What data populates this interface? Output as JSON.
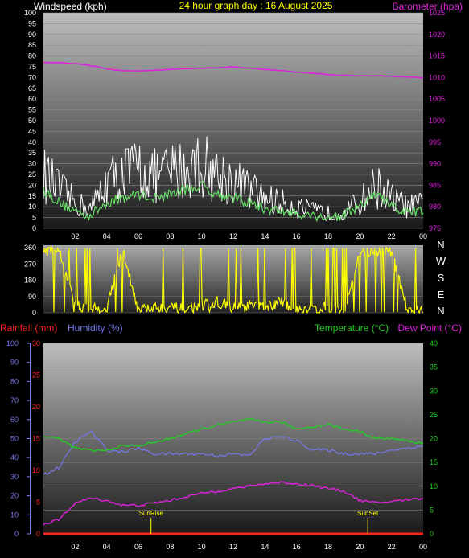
{
  "header": {
    "windspeed_label": "Windspeed (kph)",
    "title": "24 hour graph day : 16 August 2025",
    "barometer_label": "Barometer (hpa)"
  },
  "footer_labels": {
    "rainfall": "Rainfall (mm)",
    "humidity": "Humidity (%)",
    "temperature": "Temperature (°C)",
    "dewpoint": "Dew Point (°C)",
    "sunrise": "SunRise",
    "sunset": "SunSet"
  },
  "colors": {
    "windspeed": "#ffffff",
    "gust_avg": "#66dd66",
    "barometer": "#dd22dd",
    "direction": "#ffff00",
    "rainfall": "#ff2222",
    "humidity": "#7777ee",
    "temperature": "#22cc22",
    "dewpoint": "#dd22dd",
    "axis_text": "#ffffff",
    "title": "#ffff00"
  },
  "chart_data": [
    {
      "type": "line",
      "title": "24 hour graph day : 16 August 2025",
      "x_ticks": [
        "02",
        "04",
        "06",
        "08",
        "10",
        "12",
        "14",
        "16",
        "18",
        "20",
        "22",
        "00"
      ],
      "y_left": {
        "label": "Windspeed (kph)",
        "range": [
          0,
          100
        ],
        "ticks": [
          0,
          5,
          10,
          15,
          20,
          25,
          30,
          35,
          40,
          45,
          50,
          55,
          60,
          65,
          70,
          75,
          80,
          85,
          90,
          95,
          100
        ]
      },
      "y_right": {
        "label": "Barometer (hpa)",
        "range": [
          975,
          1025
        ],
        "ticks": [
          975,
          980,
          985,
          990,
          995,
          1000,
          1005,
          1010,
          1015,
          1020,
          1025
        ]
      },
      "series": [
        {
          "name": "Windspeed (kph)",
          "axis": "left",
          "x": [
            0,
            1,
            2,
            3,
            4,
            5,
            6,
            7,
            8,
            9,
            10,
            11,
            12,
            13,
            14,
            15,
            16,
            17,
            18,
            19,
            20,
            21,
            22,
            23,
            24
          ],
          "y": [
            25,
            18,
            12,
            9,
            22,
            25,
            28,
            24,
            26,
            28,
            30,
            25,
            22,
            18,
            14,
            12,
            10,
            8,
            7,
            8,
            12,
            20,
            14,
            10,
            11
          ]
        },
        {
          "name": "Average windspeed",
          "axis": "left",
          "x": [
            0,
            1,
            2,
            3,
            4,
            5,
            6,
            7,
            8,
            9,
            10,
            11,
            12,
            13,
            14,
            15,
            16,
            17,
            18,
            19,
            20,
            21,
            22,
            23,
            24
          ],
          "y": [
            18,
            12,
            8,
            6,
            12,
            14,
            16,
            14,
            16,
            18,
            20,
            16,
            14,
            12,
            9,
            8,
            7,
            6,
            5,
            6,
            10,
            16,
            10,
            7,
            8
          ]
        },
        {
          "name": "Barometer (hpa)",
          "axis": "right",
          "x": [
            0,
            1,
            2,
            3,
            4,
            5,
            6,
            7,
            8,
            9,
            10,
            11,
            12,
            13,
            14,
            15,
            16,
            17,
            18,
            19,
            20,
            21,
            22,
            23,
            24
          ],
          "y": [
            1013.5,
            1013.5,
            1013.2,
            1012.8,
            1012.0,
            1011.6,
            1011.5,
            1011.7,
            1011.9,
            1012.1,
            1012.2,
            1012.3,
            1012.5,
            1012.2,
            1011.9,
            1011.6,
            1011.3,
            1011.0,
            1010.7,
            1010.5,
            1010.4,
            1010.4,
            1010.3,
            1010.1,
            1010.0
          ]
        }
      ]
    },
    {
      "type": "line",
      "x_ticks": [
        "02",
        "04",
        "06",
        "08",
        "10",
        "12",
        "14",
        "16",
        "18",
        "20",
        "22",
        "00"
      ],
      "y_left": {
        "label": "",
        "range": [
          0,
          360
        ],
        "ticks": [
          0,
          90,
          180,
          270,
          360
        ]
      },
      "y_right": {
        "label": "",
        "ticks": [
          "N",
          "W",
          "S",
          "E",
          "N"
        ]
      },
      "series": [
        {
          "name": "Wind direction",
          "x": [
            0,
            1,
            2,
            3,
            4,
            5,
            6,
            7,
            8,
            9,
            10,
            11,
            12,
            13,
            14,
            15,
            16,
            17,
            18,
            19,
            20,
            21,
            22,
            23,
            24
          ],
          "y": [
            340,
            340,
            40,
            20,
            30,
            350,
            20,
            40,
            30,
            20,
            40,
            60,
            30,
            40,
            30,
            60,
            20,
            20,
            30,
            10,
            330,
            340,
            340,
            20,
            10
          ]
        }
      ]
    },
    {
      "type": "line",
      "x_ticks": [
        "02",
        "04",
        "06",
        "08",
        "10",
        "12",
        "14",
        "16",
        "18",
        "20",
        "22",
        "00"
      ],
      "y_far_left": {
        "label": "Humidity (%)",
        "range": [
          0,
          100
        ],
        "ticks": [
          0,
          10,
          20,
          30,
          40,
          50,
          60,
          70,
          80,
          90,
          100
        ]
      },
      "y_left": {
        "label": "Rainfall (mm)",
        "range": [
          0,
          30
        ],
        "ticks": [
          0,
          5,
          10,
          15,
          20,
          25,
          30
        ]
      },
      "y_right": {
        "label": "Temperature (°C)",
        "range": [
          0,
          40
        ],
        "ticks": [
          0,
          5,
          10,
          15,
          20,
          25,
          30,
          35,
          40
        ]
      },
      "annotations": [
        {
          "label": "SunRise",
          "x": 6.8
        },
        {
          "label": "SunSet",
          "x": 20.5
        }
      ],
      "series": [
        {
          "name": "Rainfall (mm)",
          "axis": "left",
          "x": [
            0,
            24
          ],
          "y": [
            0,
            0
          ]
        },
        {
          "name": "Humidity (%)",
          "axis": "far_left",
          "x": [
            0,
            1,
            2,
            3,
            4,
            5,
            6,
            7,
            8,
            9,
            10,
            11,
            12,
            13,
            14,
            15,
            16,
            17,
            18,
            19,
            20,
            21,
            22,
            23,
            24
          ],
          "y": [
            31,
            35,
            48,
            54,
            44,
            43,
            45,
            42,
            42,
            42,
            42,
            41,
            42,
            41,
            50,
            51,
            49,
            44,
            44,
            42,
            42,
            42,
            44,
            45,
            46
          ]
        },
        {
          "name": "Temperature (°C)",
          "axis": "right",
          "x": [
            0,
            1,
            2,
            3,
            4,
            5,
            6,
            7,
            8,
            9,
            10,
            11,
            12,
            13,
            14,
            15,
            16,
            17,
            18,
            19,
            20,
            21,
            22,
            23,
            24
          ],
          "y": [
            20.5,
            20,
            18,
            17.5,
            17.5,
            18.5,
            18.5,
            19.2,
            20,
            21,
            22,
            22.8,
            23.5,
            24,
            23.5,
            23.5,
            22,
            22.5,
            23,
            22,
            21.5,
            20,
            20,
            19.5,
            19
          ]
        },
        {
          "name": "Dew Point (°C)",
          "axis": "right",
          "x": [
            0,
            1,
            2,
            3,
            4,
            5,
            6,
            7,
            8,
            9,
            10,
            11,
            12,
            13,
            14,
            15,
            16,
            17,
            18,
            19,
            20,
            21,
            22,
            23,
            24
          ],
          "y": [
            2,
            3,
            6.5,
            7.5,
            7,
            6,
            6,
            6.5,
            7,
            7.8,
            8.5,
            9,
            9.5,
            10,
            10.5,
            10.8,
            10.5,
            10.2,
            9.5,
            9,
            7,
            6.5,
            6.8,
            7.2,
            7.5
          ]
        }
      ]
    }
  ]
}
